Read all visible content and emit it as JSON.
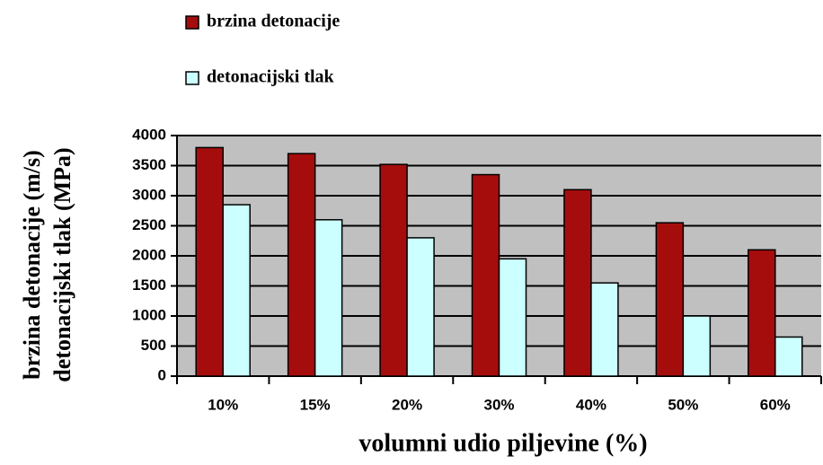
{
  "chart_data": {
    "type": "bar",
    "categories": [
      "10%",
      "15%",
      "20%",
      "30%",
      "40%",
      "50%",
      "60%"
    ],
    "series": [
      {
        "name": "brzina detonacije",
        "color": "#a50d0d",
        "values": [
          3800,
          3700,
          3520,
          3350,
          3100,
          2550,
          2100
        ]
      },
      {
        "name": "detonacijski tlak",
        "color": "#ccffff",
        "values": [
          2850,
          2600,
          2300,
          1950,
          1550,
          1000,
          650
        ]
      }
    ],
    "ylabel": [
      "brzina detonacije (m/s)",
      "detonacijski tlak (MPa)"
    ],
    "xlabel": "volumni udio piljevine (%)",
    "ylim": [
      0,
      4000
    ],
    "yticks": [
      0,
      500,
      1000,
      1500,
      2000,
      2500,
      3000,
      3500,
      4000
    ],
    "grid": true,
    "legend": "top-left"
  }
}
